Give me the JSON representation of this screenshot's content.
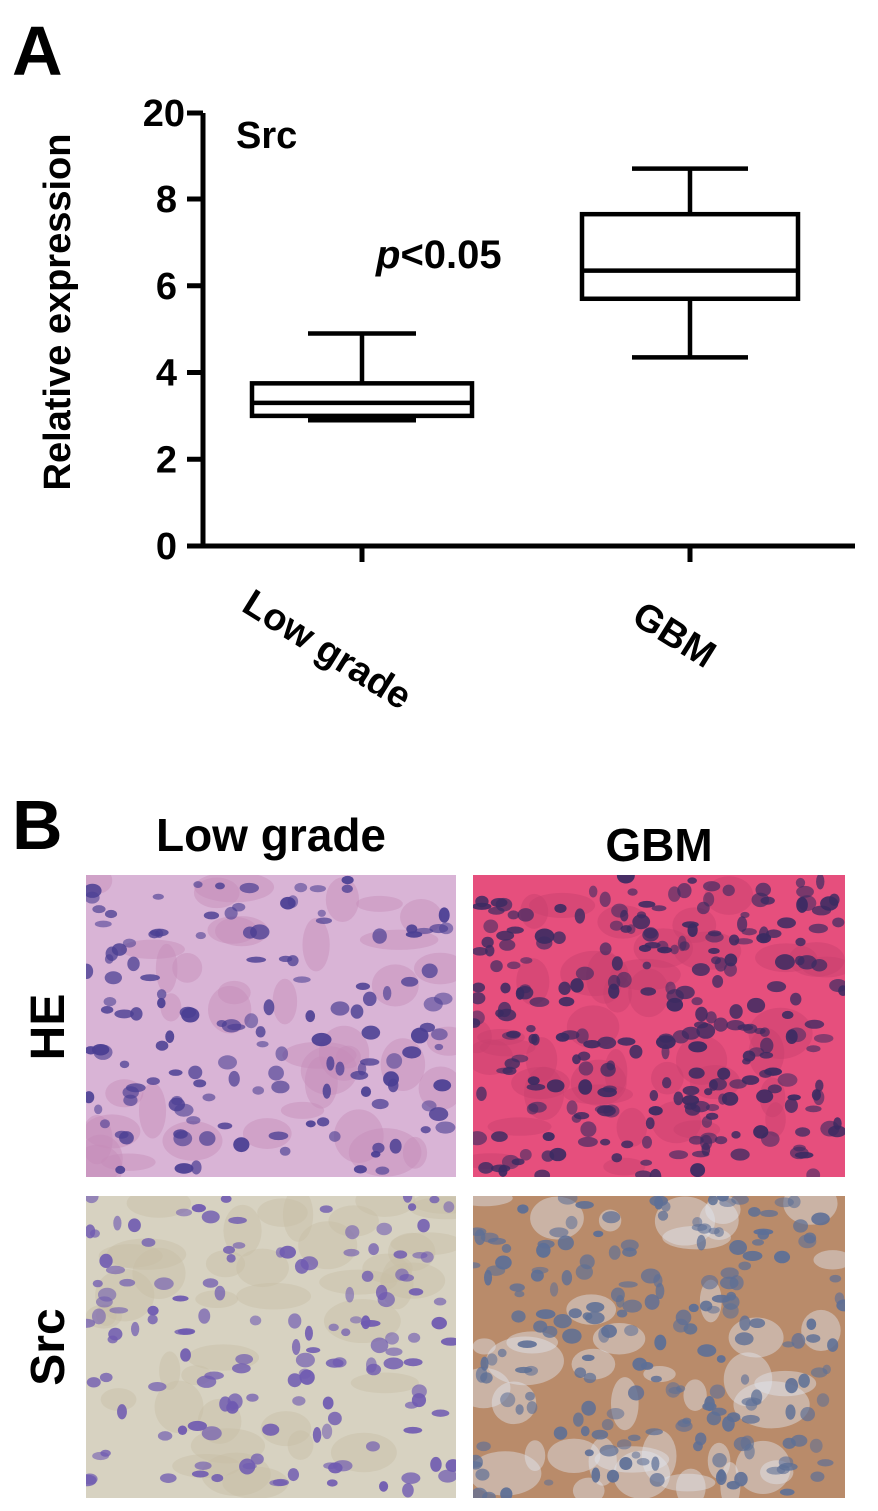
{
  "panels": {
    "a_letter": "A",
    "b_letter": "B"
  },
  "chart_data": {
    "type": "boxplot",
    "annotation_label": "Src",
    "significance_prefix": "p",
    "significance_text": "<0.05",
    "ylabel": "Relative expression",
    "xlabel": "",
    "ylim": [
      0,
      10
    ],
    "y_ticks": [
      0,
      2,
      4,
      6,
      8
    ],
    "y_tick_labels": [
      "0",
      "2",
      "4",
      "6",
      "8",
      "20"
    ],
    "axis_break_label": "20",
    "categories": [
      "Low grade",
      "GBM"
    ],
    "boxes": [
      {
        "category": "Low grade",
        "min": 2.9,
        "q1": 3.0,
        "median": 3.3,
        "q3": 3.75,
        "max": 4.9
      },
      {
        "category": "GBM",
        "min": 4.35,
        "q1": 5.7,
        "median": 6.35,
        "q3": 7.65,
        "max": 8.7
      }
    ],
    "grid": false,
    "legend": "none"
  },
  "histology": {
    "col_headers": [
      "Low grade",
      "GBM"
    ],
    "row_headers": [
      "HE",
      "Src"
    ],
    "images": [
      {
        "name": "he-low-grade",
        "bg": "#d9b4d6",
        "nucleus": "#4b3f93",
        "stroma": "#c58bb7"
      },
      {
        "name": "he-gbm",
        "bg": "#e64f7d",
        "nucleus": "#3b2b62",
        "stroma": "#c8406f"
      },
      {
        "name": "src-low-grade",
        "bg": "#d7d2c1",
        "nucleus": "#6f5ab1",
        "stroma": "#c8bfa6"
      },
      {
        "name": "src-gbm",
        "bg": "#b98b6a",
        "nucleus": "#5d6f96",
        "stroma": "#dfe4ee"
      }
    ]
  }
}
